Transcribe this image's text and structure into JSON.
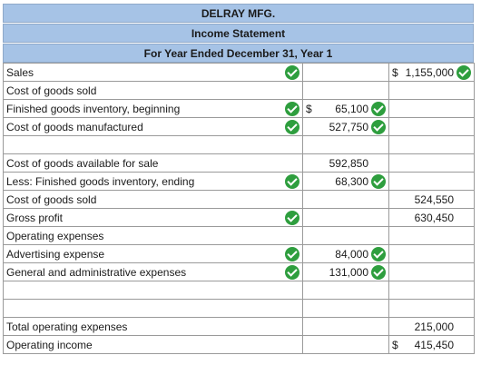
{
  "header": {
    "company": "DELRAY MFG.",
    "statement": "Income Statement",
    "period": "For Year Ended December 31, Year 1"
  },
  "rows": {
    "sales": {
      "label": "Sales",
      "currency": "$",
      "right": "1,155,000"
    },
    "cogs_header": {
      "label": "Cost of goods sold"
    },
    "fg_begin": {
      "label": "Finished goods inventory, beginning",
      "currency": "$",
      "mid": "65,100"
    },
    "cogm": {
      "label": "Cost of goods manufactured",
      "mid": "527,750"
    },
    "cogs_avail": {
      "label": "Cost of goods available for sale",
      "mid": "592,850"
    },
    "fg_end": {
      "label": "Less: Finished goods inventory, ending",
      "mid": "68,300"
    },
    "cogs": {
      "label": "Cost of goods sold",
      "right": "524,550"
    },
    "gross_profit": {
      "label": "Gross profit",
      "right": "630,450"
    },
    "opex_header": {
      "label": "Operating expenses"
    },
    "advertising": {
      "label": "Advertising expense",
      "mid": "84,000"
    },
    "gen_admin": {
      "label": "General and administrative expenses",
      "mid": "131,000"
    },
    "total_opex": {
      "label": "Total operating expenses",
      "right": "215,000"
    },
    "operating_income": {
      "label": "Operating income",
      "currency": "$",
      "right": "415,450"
    }
  },
  "colors": {
    "header_bg": "#a6c3e6",
    "check": "#2e9e3e",
    "border": "#9a9a9a"
  },
  "icons": {
    "correct": "check-circle-icon"
  }
}
